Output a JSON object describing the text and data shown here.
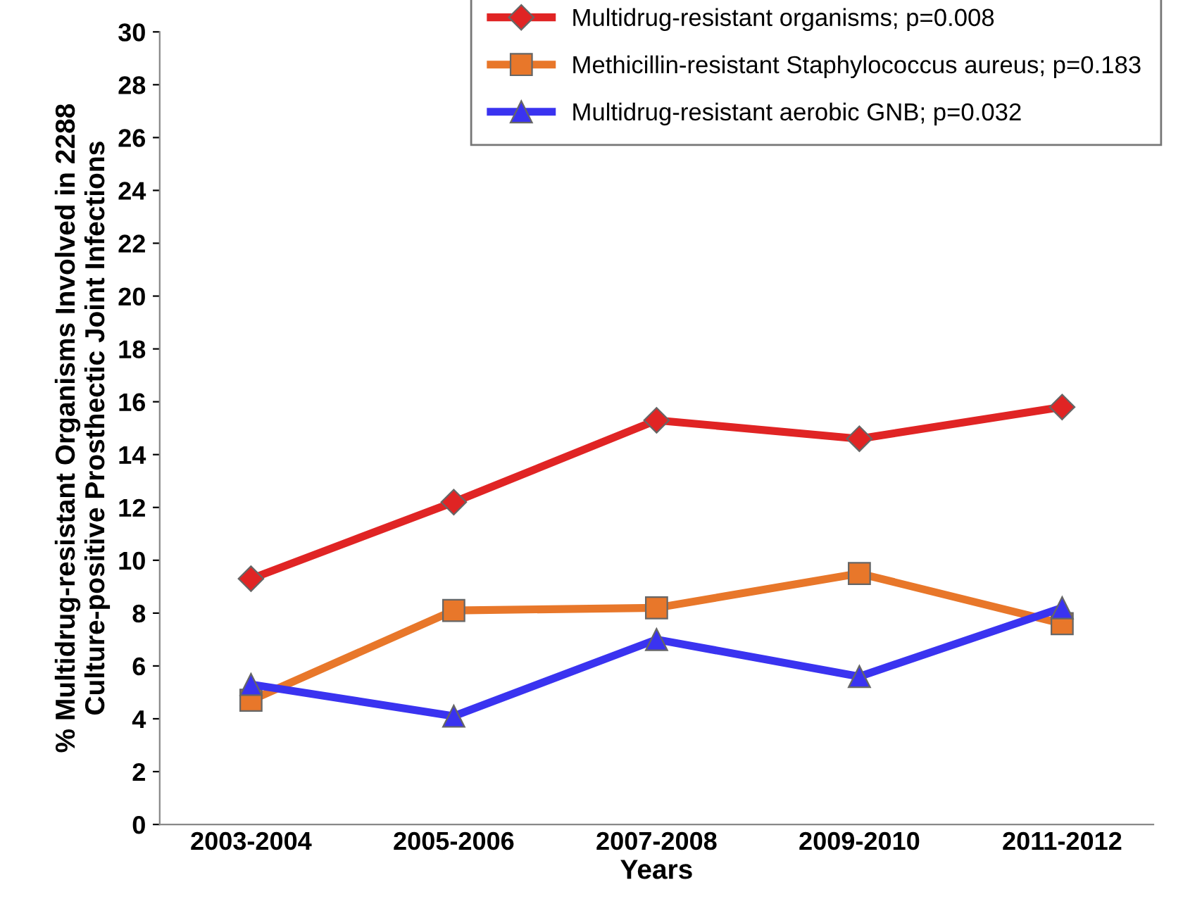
{
  "chart_data": {
    "type": "line",
    "xlabel": "Years",
    "ylabel": "% Multidrug-resistant Organisms Involved in 2288\nCulture-positive Prosthectic Joint Infections",
    "categories": [
      "2003-2004",
      "2005-2006",
      "2007-2008",
      "2009-2010",
      "2011-2012"
    ],
    "series": [
      {
        "name": "Multidrug-resistant organisms; p=0.008",
        "color": "#e02424",
        "marker": "diamond",
        "values": [
          9.3,
          12.2,
          15.3,
          14.6,
          15.8
        ]
      },
      {
        "name": "Methicillin-resistant Staphylococcus aureus; p=0.183",
        "color": "#e8772a",
        "marker": "square",
        "values": [
          4.7,
          8.1,
          8.2,
          9.5,
          7.6
        ]
      },
      {
        "name": "Multidrug-resistant aerobic GNB; p=0.032",
        "color": "#3a33f0",
        "marker": "triangle",
        "values": [
          5.3,
          4.1,
          7.0,
          5.6,
          8.2
        ]
      }
    ],
    "ylim": [
      0,
      30
    ],
    "yticks": [
      0,
      2,
      4,
      6,
      8,
      10,
      12,
      14,
      16,
      18,
      20,
      22,
      24,
      26,
      28,
      30
    ],
    "grid": false,
    "legend": "top right",
    "line_style": "solid"
  }
}
